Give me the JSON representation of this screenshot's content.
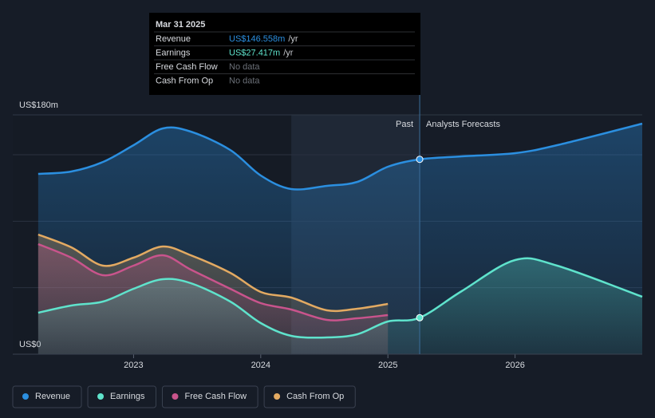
{
  "chart_data": {
    "type": "area-line",
    "x": [
      2022.25,
      2022.51,
      2022.76,
      2023.0,
      2023.23,
      2023.45,
      2023.76,
      2024.0,
      2024.24,
      2024.52,
      2024.76,
      2025.0,
      2025.25,
      2025.58,
      2026.0,
      2026.33,
      2027.0
    ],
    "xlim": [
      2022.05,
      2027.0
    ],
    "xticks": [
      2023,
      2024,
      2025,
      2026
    ],
    "ylim": [
      0,
      180
    ],
    "yticks": [
      {
        "value": 0,
        "label": "US$0"
      },
      {
        "value": 180,
        "label": "US$180m"
      }
    ],
    "grid_lines": [
      50,
      100,
      150
    ],
    "highlight_range": [
      2024.24,
      2025.25
    ],
    "past_label": "Past",
    "forecast_label": "Analysts Forecasts",
    "series": [
      {
        "name": "Revenue",
        "color": "#2b8fe0",
        "values": [
          135.6,
          137.4,
          144.6,
          157.2,
          169.8,
          167.4,
          153.6,
          134.4,
          124.2,
          126.6,
          129.6,
          141,
          146.558,
          148.8,
          151.2,
          157.2,
          173.4
        ]
      },
      {
        "name": "Earnings",
        "color": "#5fe3cc",
        "values": [
          31.2,
          36.6,
          39.6,
          49.2,
          56.4,
          53.4,
          39.6,
          23.4,
          13.8,
          12.6,
          15,
          24.6,
          27.417,
          47.4,
          70.8,
          66.6,
          43.2
        ]
      },
      {
        "name": "Free Cash Flow",
        "color": "#c9548c",
        "values": [
          82.8,
          72.6,
          59.4,
          66.6,
          74.4,
          63.6,
          49.2,
          38.4,
          33.6,
          25.8,
          27,
          29.4,
          null,
          null,
          null,
          null,
          null
        ]
      },
      {
        "name": "Cash From Op",
        "color": "#e3aa62",
        "values": [
          90,
          80.4,
          66.6,
          72.6,
          81,
          74.4,
          61.2,
          46.8,
          42.6,
          33,
          34.2,
          37.8,
          null,
          null,
          null,
          null,
          null
        ]
      }
    ],
    "tooltip": {
      "date": "Mar 31 2025",
      "index": 12,
      "rows": [
        {
          "label": "Revenue",
          "value": "US$146.558m",
          "unit": "/yr"
        },
        {
          "label": "Earnings",
          "value": "US$27.417m",
          "unit": "/yr"
        },
        {
          "label": "Free Cash Flow",
          "value": "No data"
        },
        {
          "label": "Cash From Op",
          "value": "No data"
        }
      ]
    }
  }
}
